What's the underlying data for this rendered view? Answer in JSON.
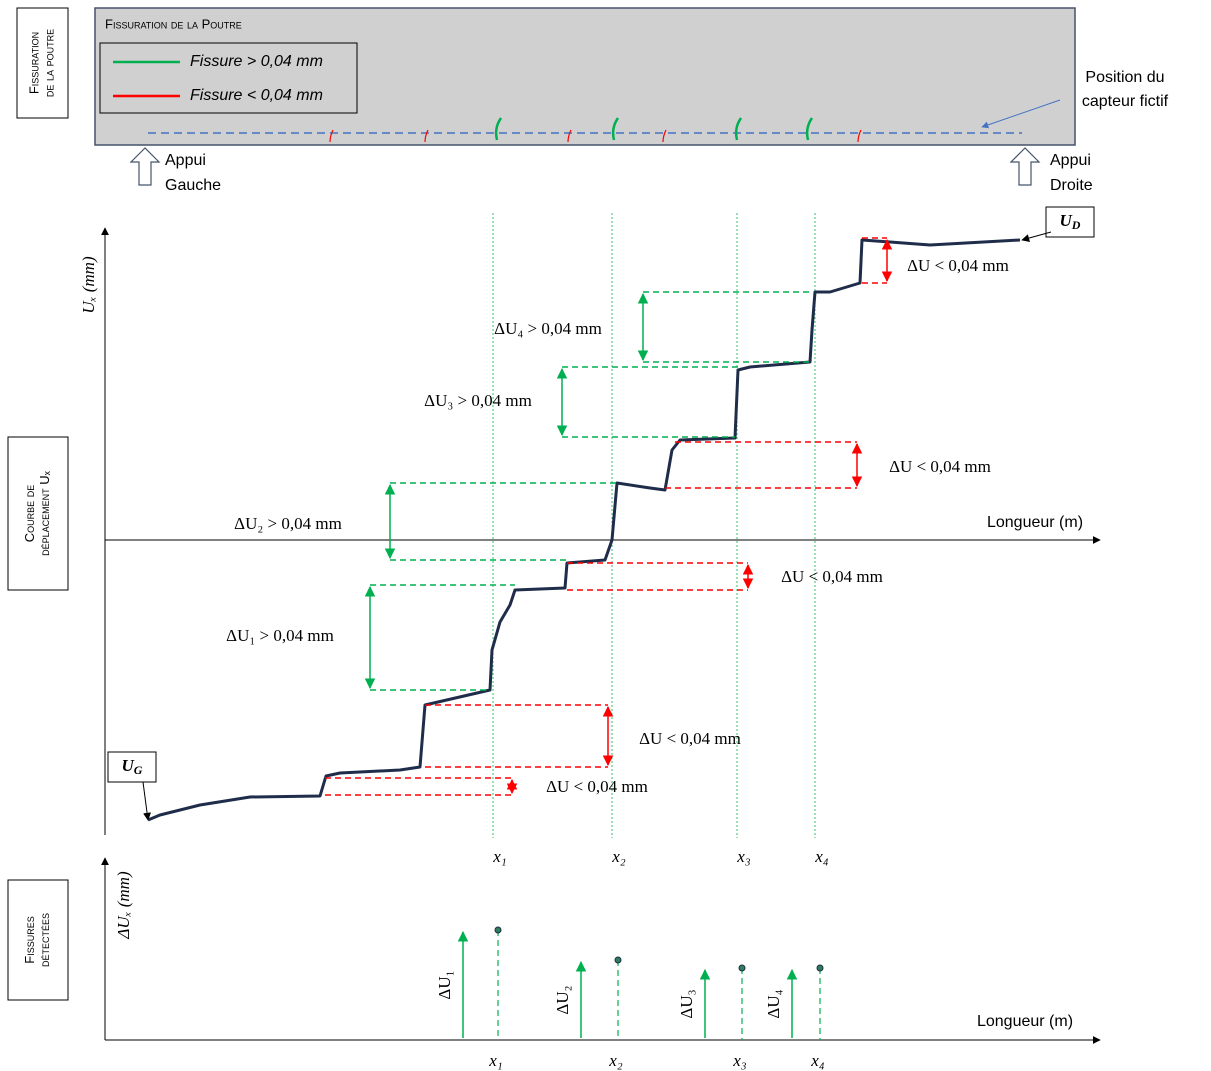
{
  "side_labels": [
    {
      "lines": [
        "Fissuration",
        "de la poutre"
      ]
    },
    {
      "lines": [
        "Courbe de",
        "déplacement Uₓ"
      ]
    },
    {
      "lines": [
        "Fissures",
        "détectées"
      ]
    }
  ],
  "beam": {
    "title": "Fissuration de la Poutre",
    "legend": [
      "Fissure > 0,04 mm",
      "Fissure < 0,04 mm"
    ],
    "sensor_label": [
      "Position du",
      "capteur fictif"
    ],
    "supports": [
      [
        "Appui",
        "Gauche"
      ],
      [
        "Appui",
        "Droite"
      ]
    ]
  },
  "displacement_chart": {
    "y_label": "Uₓ (mm)",
    "x_label": "Longueur (m)",
    "end_labels": [
      {
        "base": "U",
        "sub": "D"
      },
      {
        "base": "U",
        "sub": "G"
      }
    ],
    "annotations": [
      "ΔU₄ > 0,04 mm",
      "ΔU₃ > 0,04 mm",
      "ΔU₂ > 0,04 mm",
      "ΔU₁ > 0,04 mm",
      "ΔU < 0,04 mm",
      "ΔU < 0,04 mm",
      "ΔU < 0,04 mm",
      "ΔU < 0,04 mm",
      "ΔU < 0,04 mm"
    ],
    "positions": [
      "x₁",
      "x₂",
      "x₃",
      "x₄"
    ]
  },
  "detection_chart": {
    "y_label": "ΔUₓ (mm)",
    "x_label": "Longueur (m)",
    "jumps": [
      "ΔU₁",
      "ΔU₂",
      "ΔU₃",
      "ΔU₄"
    ],
    "positions": [
      "x₁",
      "x₂",
      "x₃",
      "x₄"
    ]
  }
}
